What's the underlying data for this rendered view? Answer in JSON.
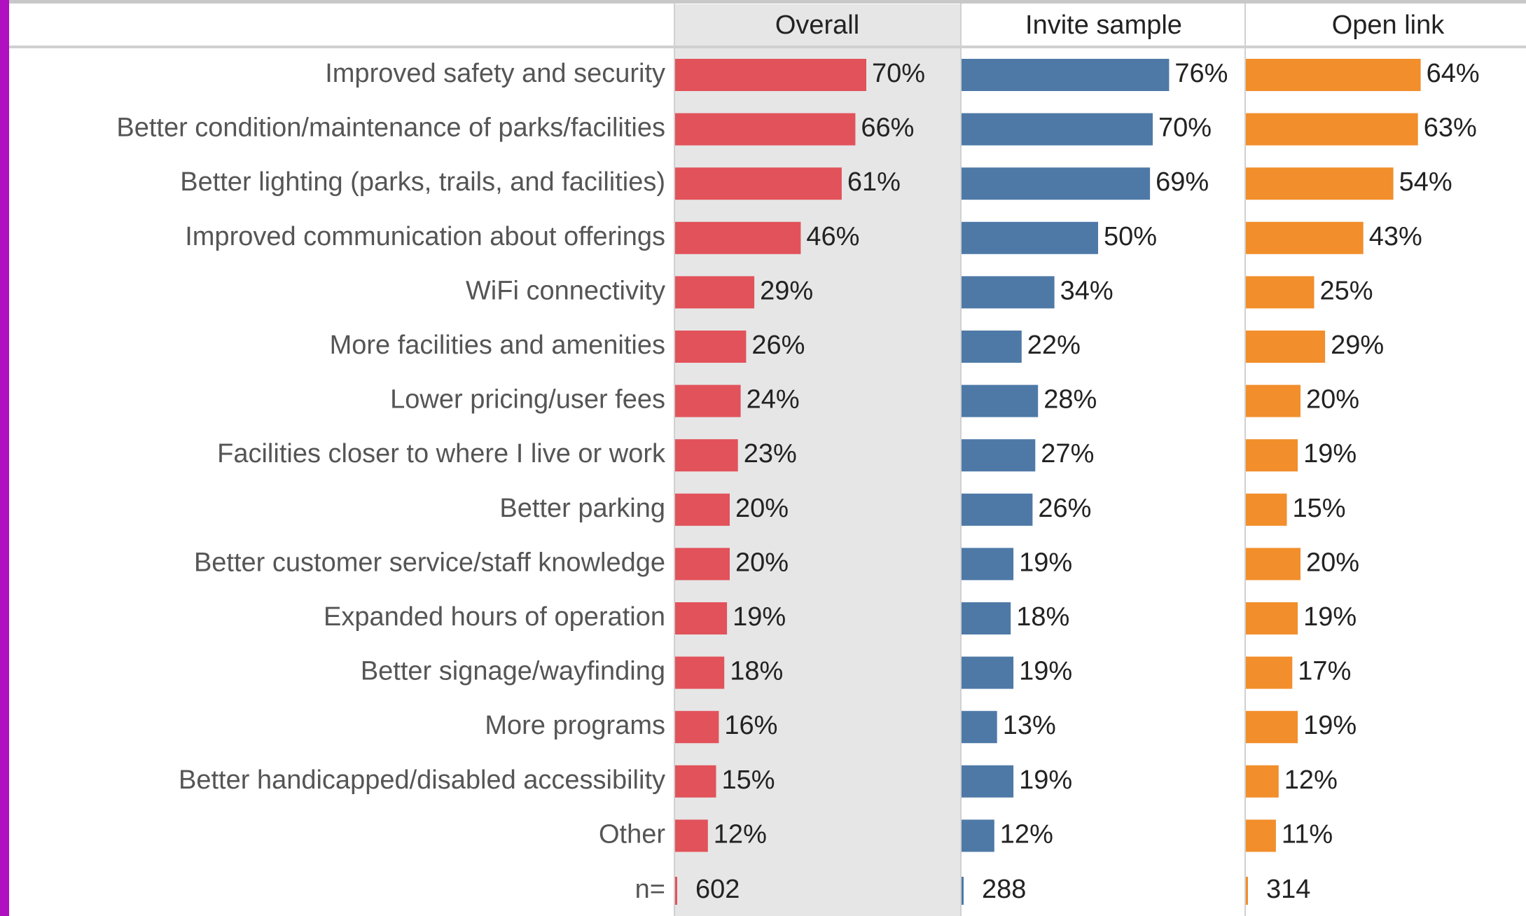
{
  "chart_data": {
    "type": "bar",
    "orientation": "horizontal",
    "categories": [
      "Improved safety and security",
      "Better condition/maintenance of parks/facilities",
      "Better lighting (parks, trails, and facilities)",
      "Improved communication about offerings",
      "WiFi connectivity",
      "More facilities and amenities",
      "Lower pricing/user fees",
      "Facilities closer to where I live or work",
      "Better parking",
      "Better customer service/staff knowledge",
      "Expanded hours of operation",
      "Better signage/wayfinding",
      "More programs",
      "Better handicapped/disabled accessibility",
      "Other"
    ],
    "xlim": [
      0,
      100
    ],
    "n_label": "n=",
    "series": [
      {
        "name": "Overall",
        "color": "#e2525a",
        "n": 602,
        "values": [
          70,
          66,
          61,
          46,
          29,
          26,
          24,
          23,
          20,
          20,
          19,
          18,
          16,
          15,
          12
        ],
        "value_labels": [
          "70%",
          "66%",
          "61%",
          "46%",
          "29%",
          "26%",
          "24%",
          "23%",
          "20%",
          "20%",
          "19%",
          "18%",
          "16%",
          "15%",
          "12%"
        ]
      },
      {
        "name": "Invite sample",
        "color": "#4e79a7",
        "n": 288,
        "values": [
          76,
          70,
          69,
          50,
          34,
          22,
          28,
          27,
          26,
          19,
          18,
          19,
          13,
          19,
          12
        ],
        "value_labels": [
          "76%",
          "70%",
          "69%",
          "50%",
          "34%",
          "22%",
          "28%",
          "27%",
          "26%",
          "19%",
          "18%",
          "19%",
          "13%",
          "19%",
          "12%"
        ]
      },
      {
        "name": "Open link",
        "color": "#f28e2b",
        "n": 314,
        "values": [
          64,
          63,
          54,
          43,
          25,
          29,
          20,
          19,
          15,
          20,
          19,
          17,
          19,
          12,
          11
        ],
        "value_labels": [
          "64%",
          "63%",
          "54%",
          "43%",
          "25%",
          "29%",
          "20%",
          "19%",
          "15%",
          "20%",
          "19%",
          "17%",
          "19%",
          "12%",
          "11%"
        ]
      }
    ]
  }
}
